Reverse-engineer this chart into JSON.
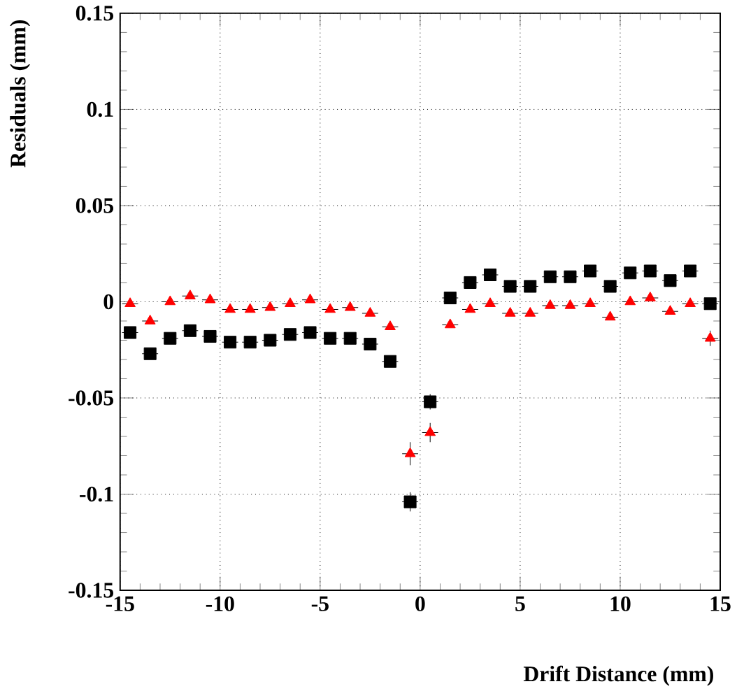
{
  "chart_data": {
    "type": "scatter",
    "xlabel": "Drift Distance (mm)",
    "ylabel": "Residuals (mm)",
    "x": [
      -14.5,
      -13.5,
      -12.5,
      -11.5,
      -10.5,
      -9.5,
      -8.5,
      -7.5,
      -6.5,
      -5.5,
      -4.5,
      -3.5,
      -2.5,
      -1.5,
      -0.5,
      0.5,
      1.5,
      2.5,
      3.5,
      4.5,
      5.5,
      6.5,
      7.5,
      8.5,
      9.5,
      10.5,
      11.5,
      12.5,
      13.5,
      14.5
    ],
    "series": [
      {
        "color": "#000000",
        "marker": "square",
        "values": [
          -0.016,
          -0.027,
          -0.019,
          -0.015,
          -0.018,
          -0.021,
          -0.021,
          -0.02,
          -0.017,
          -0.016,
          -0.019,
          -0.019,
          -0.022,
          -0.031,
          -0.104,
          -0.052,
          0.002,
          0.01,
          0.014,
          0.008,
          0.008,
          0.013,
          0.013,
          0.016,
          0.008,
          0.015,
          0.016,
          0.011,
          0.016,
          -0.001
        ],
        "xerrors": [
          0.4,
          0.4,
          0.4,
          0.4,
          0.4,
          0.4,
          0.4,
          0.4,
          0.4,
          0.4,
          0.4,
          0.4,
          0.4,
          0.4,
          0.4,
          0.4,
          0.4,
          0.4,
          0.4,
          0.4,
          0.4,
          0.4,
          0.4,
          0.4,
          0.4,
          0.4,
          0.4,
          0.4,
          0.4,
          0.4
        ],
        "errors": [
          null,
          null,
          null,
          null,
          null,
          null,
          null,
          null,
          null,
          null,
          null,
          null,
          null,
          null,
          0.005,
          0.004,
          null,
          null,
          null,
          null,
          null,
          null,
          null,
          null,
          null,
          null,
          null,
          null,
          null,
          null
        ]
      },
      {
        "color": "#ff0000",
        "marker": "triangle",
        "values": [
          -0.001,
          -0.01,
          0.0,
          0.003,
          0.001,
          -0.004,
          -0.004,
          -0.003,
          -0.001,
          0.001,
          -0.004,
          -0.003,
          -0.006,
          -0.013,
          -0.079,
          -0.068,
          -0.012,
          -0.004,
          -0.001,
          -0.006,
          -0.006,
          -0.002,
          -0.002,
          -0.001,
          -0.008,
          0.0,
          0.002,
          -0.005,
          -0.001,
          -0.019
        ],
        "xerrors": [
          0.4,
          0.4,
          0.4,
          0.4,
          0.4,
          0.4,
          0.4,
          0.4,
          0.4,
          0.4,
          0.4,
          0.4,
          0.4,
          0.4,
          0.4,
          0.4,
          0.4,
          0.4,
          0.4,
          0.4,
          0.4,
          0.4,
          0.4,
          0.4,
          0.4,
          0.4,
          0.4,
          0.4,
          0.4,
          0.4
        ],
        "errors": [
          null,
          null,
          null,
          null,
          null,
          null,
          null,
          null,
          null,
          null,
          null,
          null,
          null,
          null,
          0.006,
          0.005,
          null,
          null,
          null,
          null,
          null,
          null,
          null,
          null,
          null,
          null,
          null,
          null,
          null,
          0.004
        ]
      }
    ],
    "xlim": [
      -15,
      15
    ],
    "ylim": [
      -0.15,
      0.15
    ],
    "xticks": [
      -15,
      -10,
      -5,
      0,
      5,
      10,
      15
    ],
    "yticks": [
      -0.15,
      -0.1,
      -0.05,
      0,
      0.05,
      0.1,
      0.15
    ],
    "grid": true
  }
}
